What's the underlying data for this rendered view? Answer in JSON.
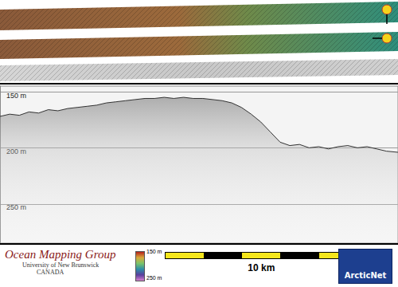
{
  "chart_data": {
    "type": "line",
    "color": "#333333",
    "tick_labels": "y",
    "grid": true,
    "x": [
      0,
      0.5,
      1,
      1.5,
      2,
      2.5,
      3,
      3.5,
      4,
      4.5,
      5,
      5.5,
      6,
      6.5,
      7,
      7.5,
      8,
      8.5,
      9,
      9.5,
      10,
      10.5,
      11,
      11.5,
      12,
      12.5,
      13,
      13.5,
      14,
      14.5,
      15,
      15.5,
      16,
      16.5,
      17,
      17.5,
      18,
      18.5,
      19,
      19.5,
      20,
      20.6
    ],
    "values": [
      172,
      170,
      171,
      168,
      169,
      166,
      167,
      165,
      164,
      163,
      162,
      160,
      159,
      158,
      157,
      156,
      156,
      155,
      156,
      155,
      156,
      156,
      157,
      158,
      160,
      164,
      170,
      177,
      186,
      195,
      198,
      197,
      200,
      199,
      201,
      199,
      198,
      200,
      199,
      201,
      203,
      204
    ],
    "xlim": [
      0,
      20.6
    ],
    "ylim": [
      145,
      285
    ],
    "yticks": [
      {
        "value": 150,
        "label": "150 m"
      },
      {
        "value": 200,
        "label": "200 m"
      },
      {
        "value": 250,
        "label": "250 m"
      }
    ]
  },
  "colorbar": {
    "range": [
      150,
      250
    ],
    "ticks": [
      {
        "value": 150,
        "label": "150 m"
      },
      {
        "value": 250,
        "label": "250 m"
      }
    ]
  },
  "scale_bar": {
    "length": 10,
    "label": "10 km"
  },
  "logos": {
    "left": {
      "title": "Ocean Mapping Group",
      "subtitle": "University of New Brunswick",
      "country": "CANADA"
    },
    "right": "ArcticNet"
  }
}
